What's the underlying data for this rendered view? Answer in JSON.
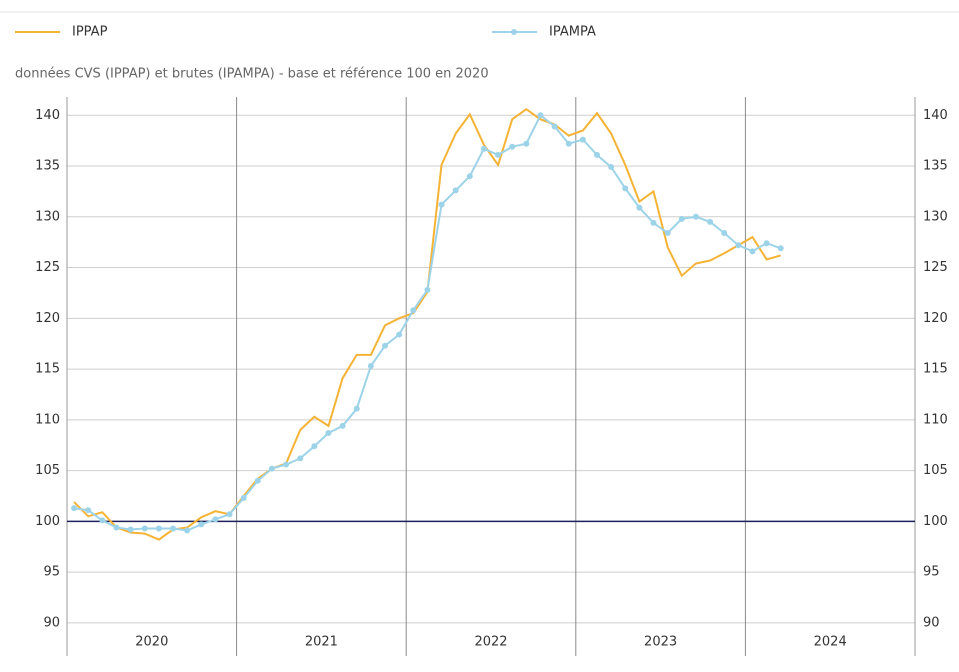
{
  "chart_data": {
    "type": "line",
    "subtitle": "données CVS (IPPAP) et brutes (IPAMPA) - base et référence 100 en 2020",
    "xticks": [
      "2020",
      "2021",
      "2022",
      "2023",
      "2024"
    ],
    "ylim": [
      89.3,
      141.8
    ],
    "yticks": [
      90,
      95,
      100,
      105,
      110,
      115,
      120,
      125,
      130,
      135,
      140
    ],
    "reference_value": 100,
    "grid": true,
    "series": [
      {
        "name": "IPPAP",
        "color": "#f5b335",
        "markers": false,
        "values": [
          101.9,
          100.5,
          100.9,
          99.4,
          98.9,
          98.8,
          98.2,
          99.2,
          99.4,
          100.4,
          101.0,
          100.7,
          102.5,
          104.2,
          105.2,
          105.7,
          109.0,
          110.3,
          109.4,
          114.1,
          116.4,
          116.4,
          119.3,
          120.0,
          120.5,
          122.6,
          135.1,
          138.2,
          140.1,
          137.1,
          135.1,
          139.6,
          140.6,
          139.6,
          139.1,
          138.0,
          138.5,
          140.2,
          138.2,
          135.1,
          131.5,
          132.5,
          127.0,
          124.2,
          125.4,
          125.7,
          126.4,
          127.2,
          128.0,
          125.8,
          126.2
        ]
      },
      {
        "name": "IPAMPA",
        "color": "#9dd3e8",
        "markers": true,
        "values": [
          101.3,
          101.1,
          100.1,
          99.4,
          99.2,
          99.3,
          99.3,
          99.3,
          99.1,
          99.7,
          100.2,
          100.7,
          102.3,
          104.0,
          105.2,
          105.6,
          106.2,
          107.4,
          108.7,
          109.4,
          111.1,
          115.3,
          117.3,
          118.4,
          120.8,
          122.8,
          131.2,
          132.6,
          134.0,
          136.7,
          136.1,
          136.9,
          137.2,
          140.0,
          138.9,
          137.2,
          137.6,
          136.1,
          134.9,
          132.8,
          130.9,
          129.4,
          128.4,
          129.8,
          130.0,
          129.5,
          128.4,
          127.2,
          126.6,
          127.4,
          126.9
        ]
      }
    ]
  }
}
